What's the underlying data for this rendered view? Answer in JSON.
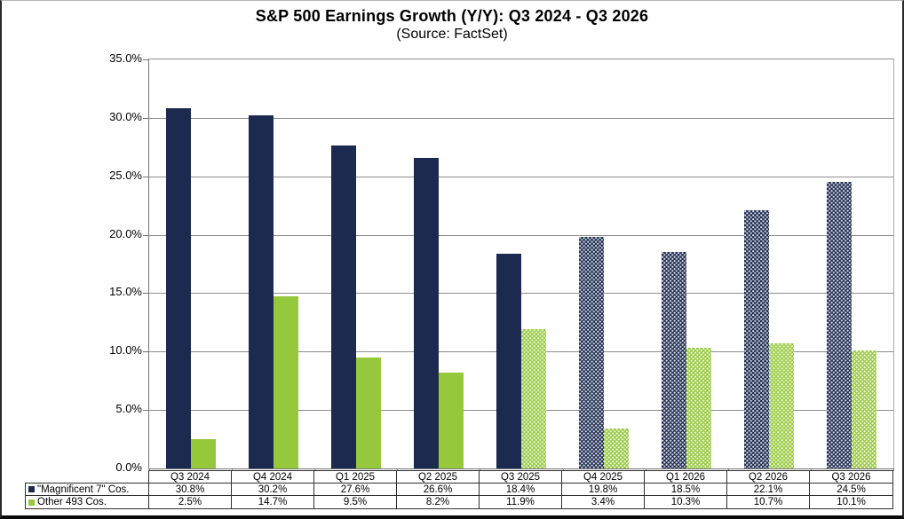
{
  "title": "S&P 500 Earnings Growth (Y/Y): Q3 2024 - Q3 2026",
  "subtitle": "(Source: FactSet)",
  "colors": {
    "mag7_navy": "#1c2a50",
    "other_green": "#96c83c",
    "gridline": "#8e8e8e",
    "table_border": "#2f2f2f"
  },
  "chart_data": {
    "type": "bar",
    "title": "S&P 500 Earnings Growth (Y/Y): Q3 2024 - Q3 2026",
    "subtitle": "(Source: FactSet)",
    "categories": [
      "Q3 2024",
      "Q4 2024",
      "Q1 2025",
      "Q2 2025",
      "Q3 2025",
      "Q4 2025",
      "Q1 2026",
      "Q2 2026",
      "Q3 2026"
    ],
    "series": [
      {
        "name": "\"Magnificent 7\" Cos.",
        "color": "#1c2a50",
        "values": [
          30.8,
          30.2,
          27.6,
          26.6,
          18.4,
          19.8,
          18.5,
          22.1,
          24.5
        ],
        "values_display": [
          "30.8%",
          "30.2%",
          "27.6%",
          "26.6%",
          "18.4%",
          "19.8%",
          "18.5%",
          "22.1%",
          "24.5%"
        ],
        "estimated": [
          false,
          false,
          false,
          false,
          false,
          true,
          true,
          true,
          true
        ]
      },
      {
        "name": "Other 493 Cos.",
        "color": "#96c83c",
        "values": [
          2.5,
          14.7,
          9.5,
          8.2,
          11.9,
          3.4,
          10.3,
          10.7,
          10.1
        ],
        "values_display": [
          "2.5%",
          "14.7%",
          "9.5%",
          "8.2%",
          "11.9%",
          "3.4%",
          "10.3%",
          "10.7%",
          "10.1%"
        ],
        "estimated": [
          false,
          false,
          false,
          false,
          true,
          true,
          true,
          true,
          true
        ]
      }
    ],
    "ylim": [
      0,
      35
    ],
    "ytick_step": 5,
    "ytick_labels": [
      "0.0%",
      "5.0%",
      "10.0%",
      "15.0%",
      "20.0%",
      "25.0%",
      "30.0%",
      "35.0%"
    ],
    "grid": true,
    "legend_position": "bottom-left"
  }
}
